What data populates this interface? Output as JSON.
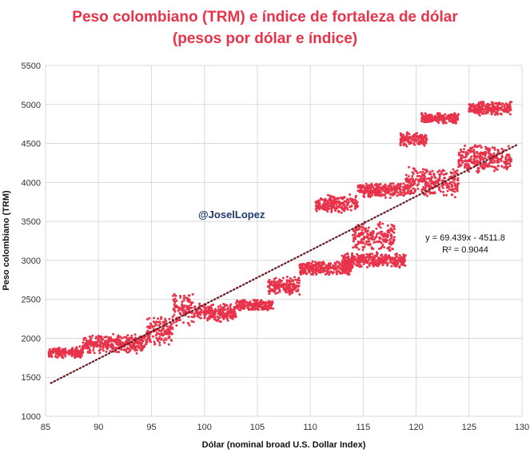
{
  "page": {
    "title_line1": "Peso colombiano (TRM) e índice de fortaleza de dólar",
    "title_line2": "(pesos por dólar e índice)",
    "watermark": "@JoselLopez",
    "title_color": "#e8334a",
    "point_color": "#e8334a",
    "trend_color": "#6b1a24",
    "watermark_color": "#1f3a6e"
  },
  "chart_data": {
    "type": "scatter",
    "title": "Peso colombiano (TRM) e índice de fortaleza de dólar (pesos por dólar e índice)",
    "xlabel": "Dólar (nominal broad U.S. Dollar Index)",
    "ylabel": "Peso colombiano (TRM)",
    "xlim": [
      85,
      130
    ],
    "ylim": [
      1000,
      5500
    ],
    "xticks": [
      85,
      90,
      95,
      100,
      105,
      110,
      115,
      120,
      125,
      130
    ],
    "yticks": [
      1000,
      1500,
      2000,
      2500,
      3000,
      3500,
      4000,
      4500,
      5000,
      5500
    ],
    "grid": "vertical and horizontal",
    "legend": "none",
    "trendline": {
      "type": "linear",
      "slope": 69.439,
      "intercept": -4511.8,
      "equation": "y = 69.439x - 4511.8",
      "r2": "R² = 0.9044"
    },
    "clusters": [
      {
        "x": [
          85.3,
          88.5
        ],
        "y": [
          1740,
          1900
        ]
      },
      {
        "x": [
          88.5,
          94.5
        ],
        "y": [
          1800,
          2060
        ]
      },
      {
        "x": [
          94.5,
          97.0
        ],
        "y": [
          1900,
          2300
        ]
      },
      {
        "x": [
          97.0,
          99.0
        ],
        "y": [
          2150,
          2600
        ]
      },
      {
        "x": [
          99.0,
          103.0
        ],
        "y": [
          2200,
          2450
        ]
      },
      {
        "x": [
          103.0,
          106.5
        ],
        "y": [
          2350,
          2500
        ]
      },
      {
        "x": [
          106.0,
          109.0
        ],
        "y": [
          2550,
          2800
        ]
      },
      {
        "x": [
          109.0,
          114.0
        ],
        "y": [
          2800,
          3000
        ]
      },
      {
        "x": [
          113.0,
          119.0
        ],
        "y": [
          2900,
          3100
        ]
      },
      {
        "x": [
          114.0,
          118.0
        ],
        "y": [
          3100,
          3500
        ]
      },
      {
        "x": [
          110.5,
          114.5
        ],
        "y": [
          3600,
          3850
        ]
      },
      {
        "x": [
          114.5,
          119.0
        ],
        "y": [
          3800,
          4000
        ]
      },
      {
        "x": [
          119.0,
          124.0
        ],
        "y": [
          3800,
          4200
        ]
      },
      {
        "x": [
          118.5,
          121.0
        ],
        "y": [
          4450,
          4650
        ]
      },
      {
        "x": [
          120.5,
          124.0
        ],
        "y": [
          4750,
          4900
        ]
      },
      {
        "x": [
          124.0,
          129.0
        ],
        "y": [
          4100,
          4500
        ]
      },
      {
        "x": [
          125.0,
          129.0
        ],
        "y": [
          4850,
          5050
        ]
      }
    ]
  }
}
